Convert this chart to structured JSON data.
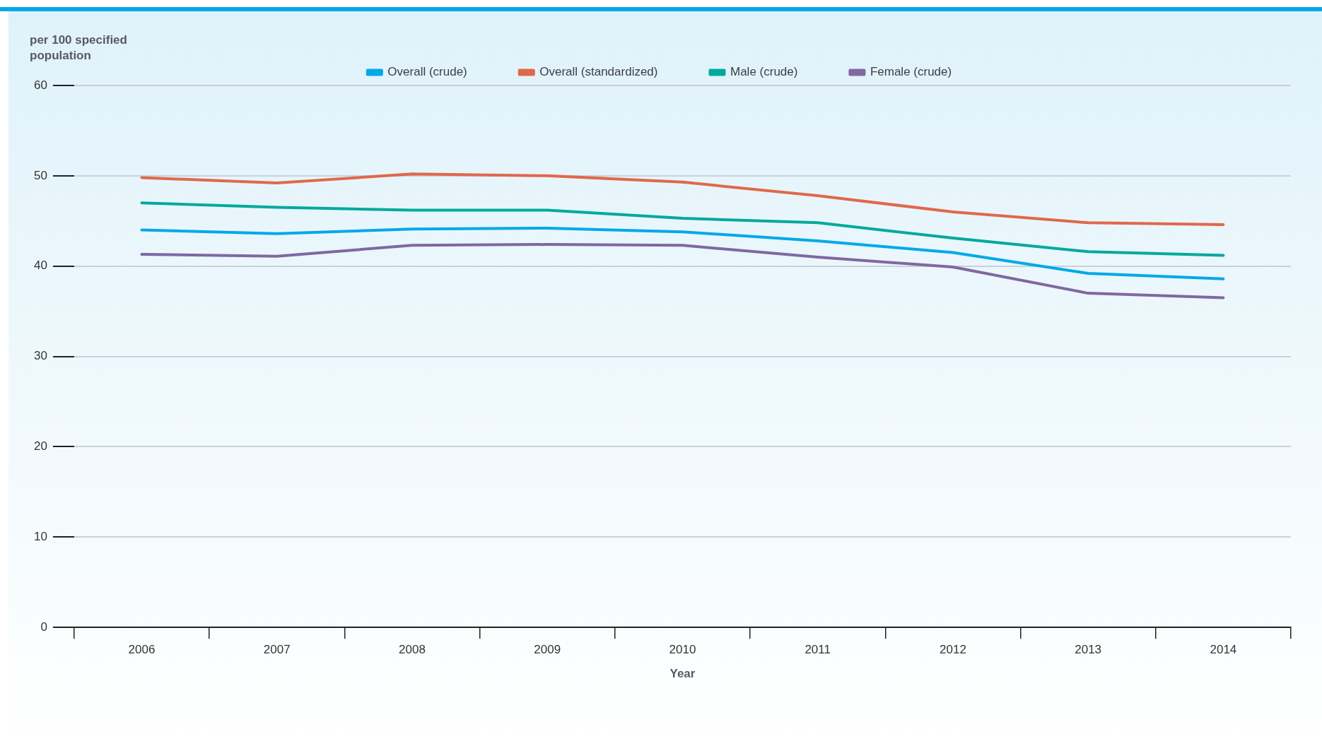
{
  "chart_data": {
    "type": "line",
    "ylabel": "per 100 specified population",
    "xlabel": "Year",
    "categories": [
      "2006",
      "2007",
      "2008",
      "2009",
      "2010",
      "2011",
      "2012",
      "2013",
      "2014"
    ],
    "series": [
      {
        "name": "Overall (crude)",
        "color": "#00a9e8",
        "values": [
          44.0,
          43.6,
          44.1,
          44.2,
          43.8,
          42.8,
          41.5,
          39.2,
          38.6
        ]
      },
      {
        "name": "Overall (standardized)",
        "color": "#e0684b",
        "values": [
          49.8,
          49.2,
          50.2,
          50.0,
          49.3,
          47.8,
          46.0,
          44.8,
          44.6
        ]
      },
      {
        "name": "Male (crude)",
        "color": "#00a99d",
        "values": [
          47.0,
          46.5,
          46.2,
          46.2,
          45.3,
          44.8,
          43.1,
          41.6,
          41.2
        ]
      },
      {
        "name": "Female (crude)",
        "color": "#8068a0",
        "values": [
          41.3,
          41.1,
          42.3,
          42.4,
          42.3,
          41.0,
          39.9,
          37.0,
          36.5
        ]
      }
    ],
    "ylim": [
      0,
      60
    ],
    "yticks": [
      0,
      10,
      20,
      30,
      40,
      50,
      60
    ],
    "grid": "y",
    "legend": "top",
    "marker": "none",
    "line_style": "solid"
  }
}
